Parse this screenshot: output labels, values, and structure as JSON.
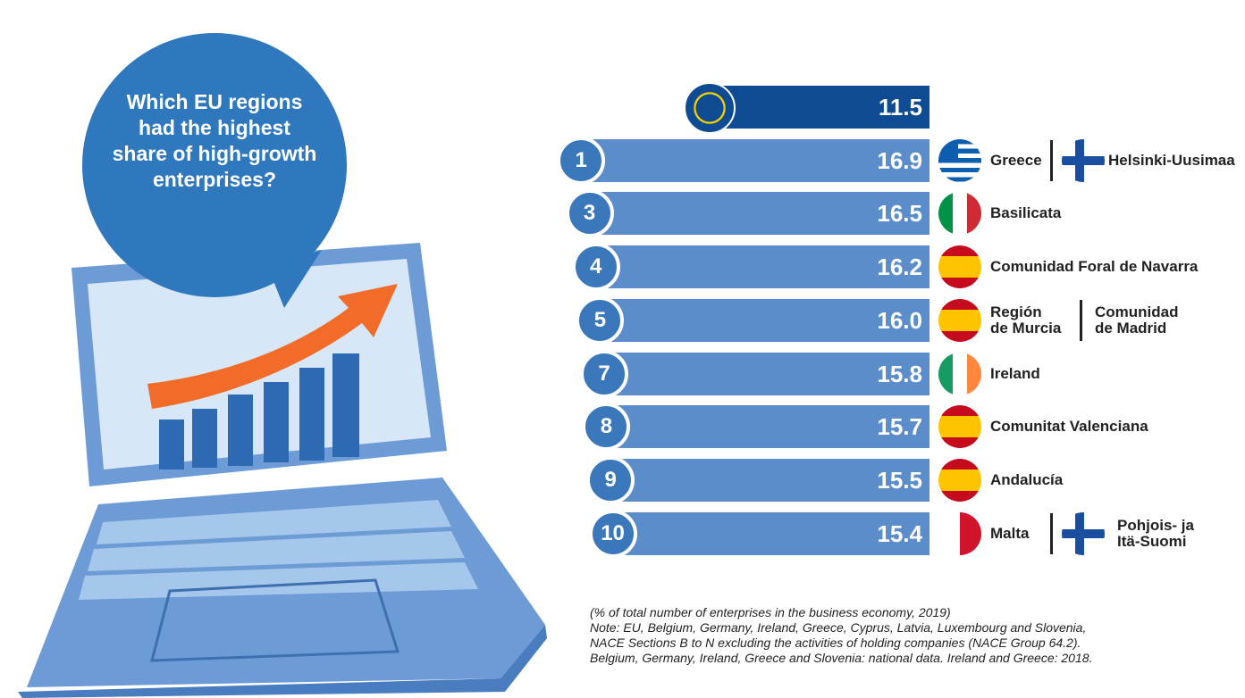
{
  "chart_data": {
    "type": "bar",
    "title": "Which EU regions had the highest share of high-growth enterprises?",
    "subtitle": "(% of total number of enterprises in the business economy, 2019)",
    "notes": [
      "Note: EU, Belgium, Germany, Ireland, Greece, Cyprus, Latvia, Luxembourg and Slovenia,",
      "NACE Sections B to N excluding the activities of holding companies (NACE Group 64.2).",
      "Belgium, Germany, Ireland, Greece and Slovenia: national data. Ireland and Greece: 2018."
    ],
    "ranks": [
      null,
      1,
      3,
      4,
      5,
      7,
      8,
      9,
      10
    ],
    "categories": [
      null,
      [
        "Greece",
        "Helsinki-Uusimaa"
      ],
      [
        "Basilicata"
      ],
      [
        "Comunidad Foral de Navarra"
      ],
      [
        "Región de Murcia",
        "Comunidad de Madrid"
      ],
      [
        "Ireland"
      ],
      [
        "Comunitat Valenciana"
      ],
      [
        "Andalucía"
      ],
      [
        "Malta",
        "Pohjois- ja Itä-Suomi"
      ]
    ],
    "values": [
      11.5,
      16.9,
      16.5,
      16.2,
      16.0,
      15.8,
      15.7,
      15.5,
      15.4
    ],
    "value_labels": [
      "11.5",
      "16.9",
      "16.5",
      "16.2",
      "16.0",
      "15.8",
      "15.7",
      "15.5",
      "15.4"
    ],
    "colors": [
      "#0e4b93",
      "#5b8dcb",
      "#5b8dcb",
      "#5b8dcb",
      "#5b8dcb",
      "#5b8dcb",
      "#5b8dcb",
      "#5b8dcb",
      "#5b8dcb"
    ]
  }
}
